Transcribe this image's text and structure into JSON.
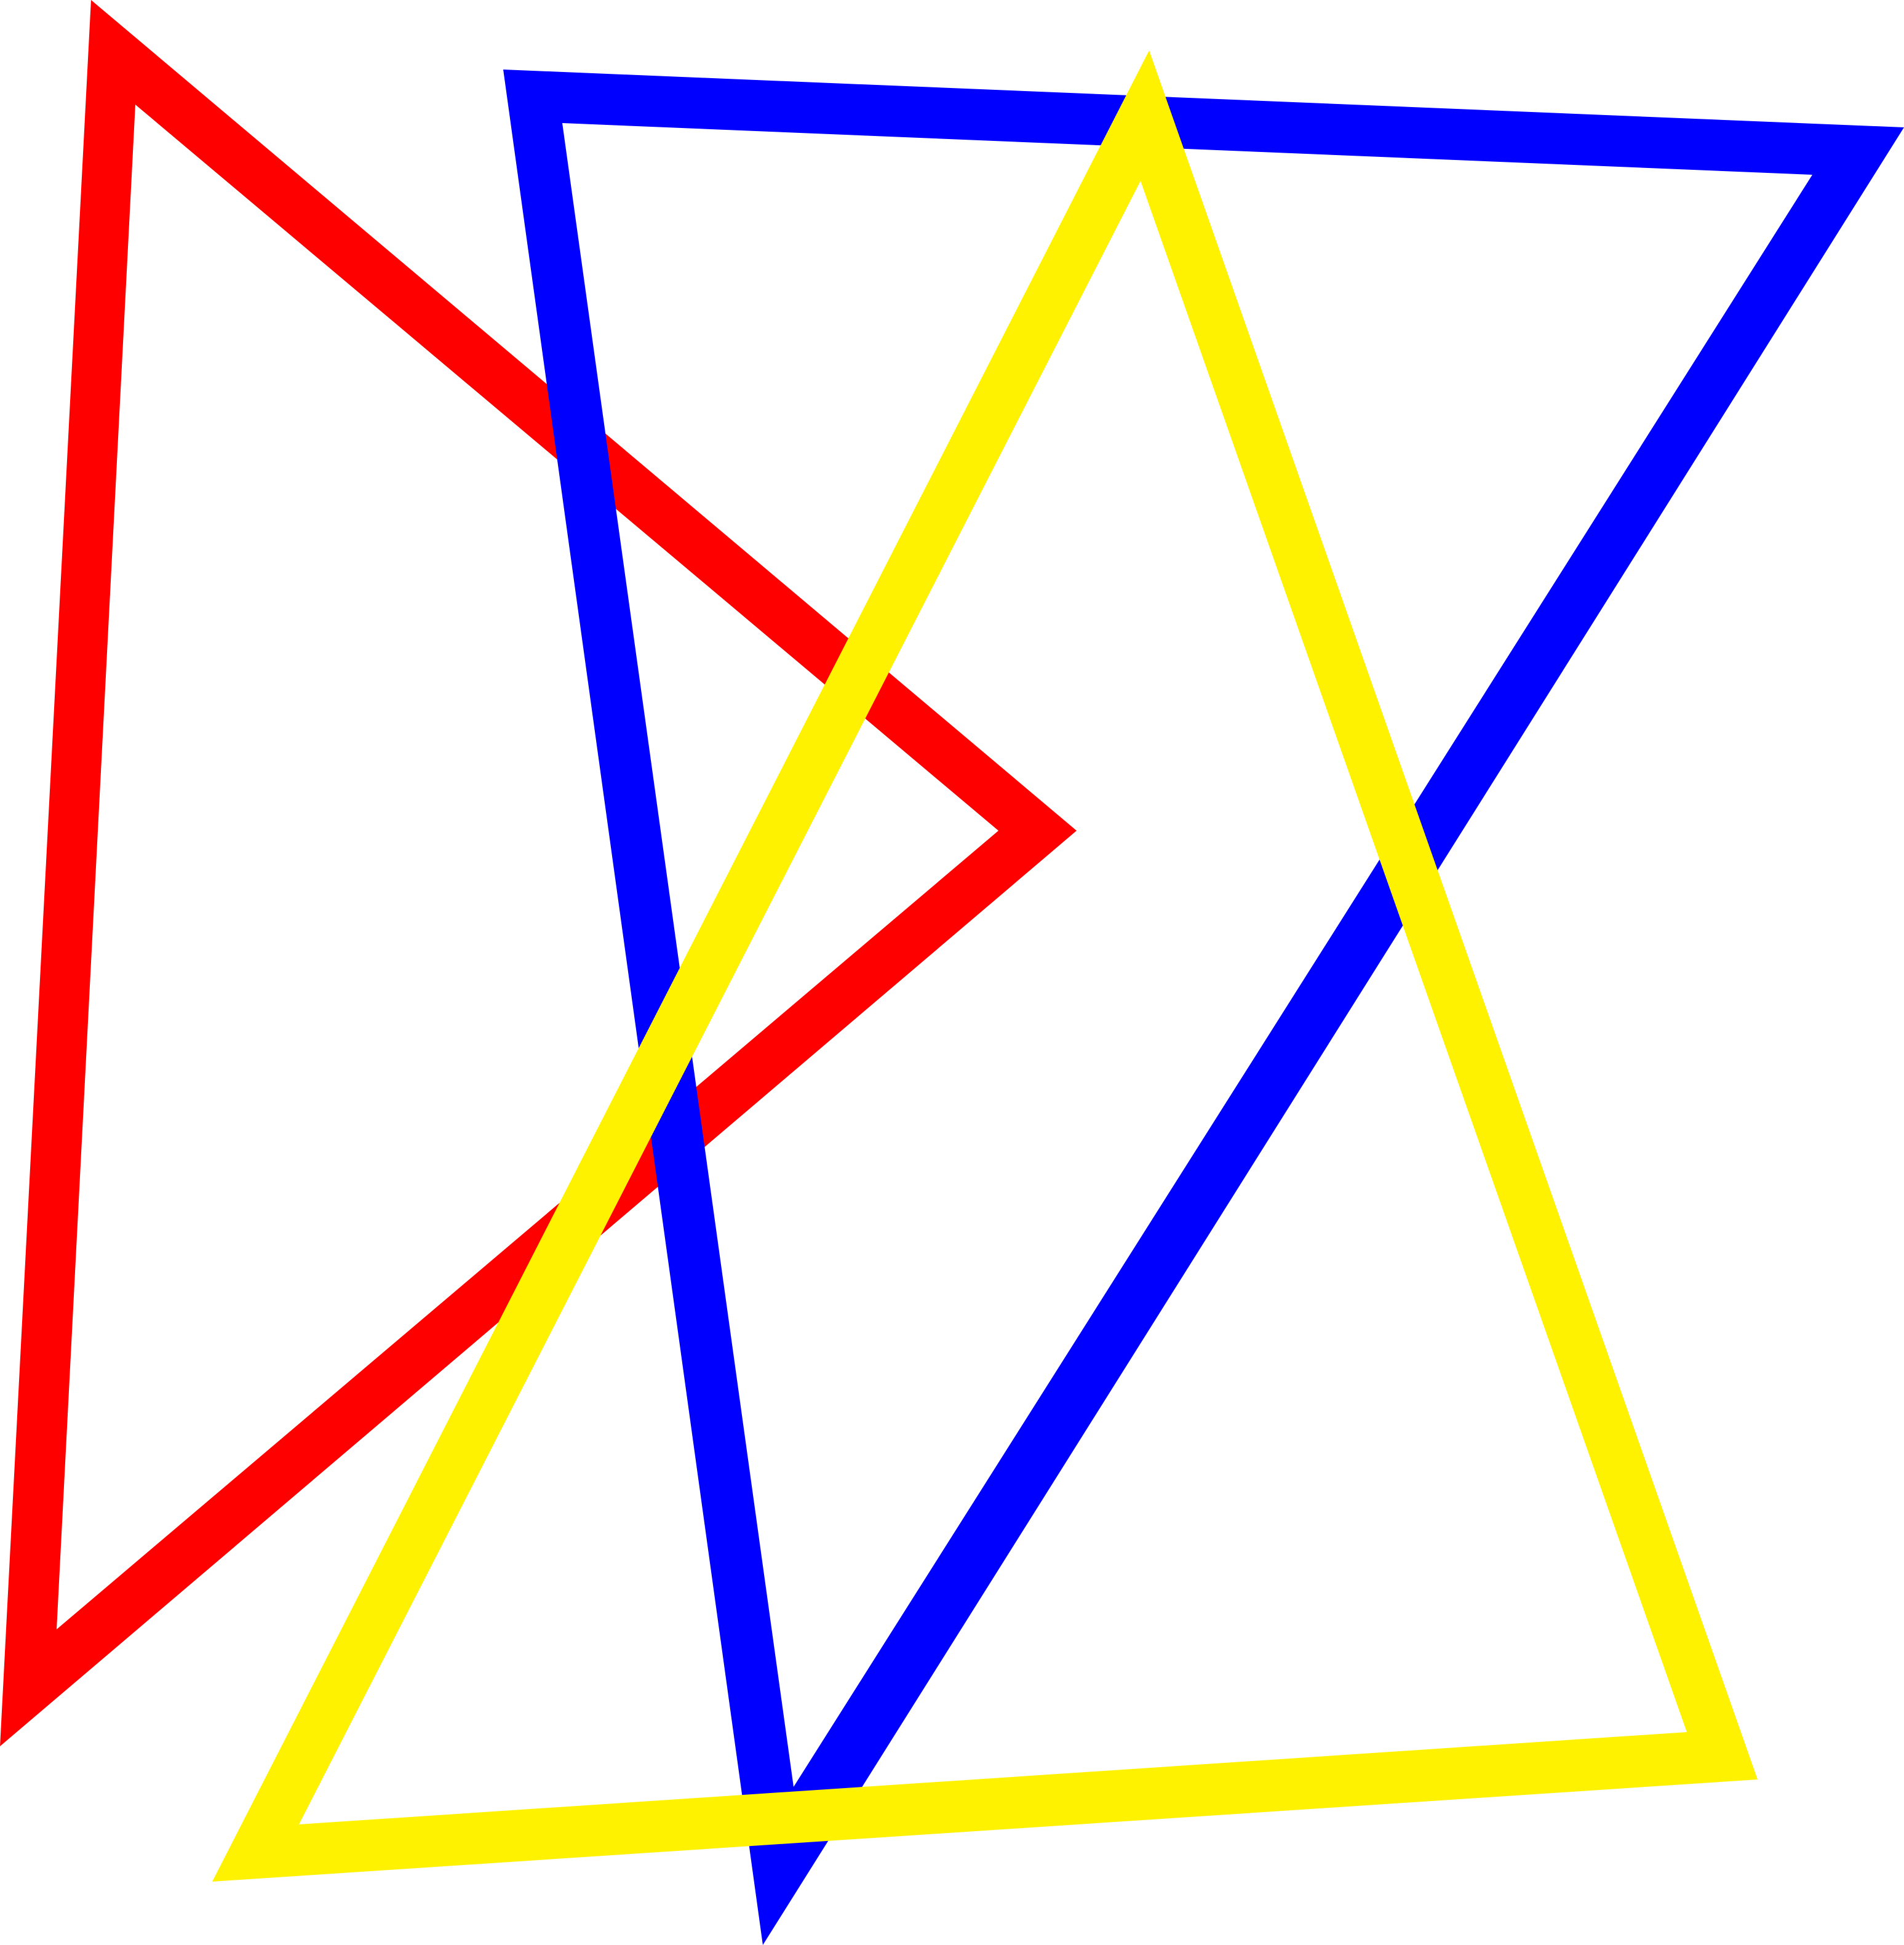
{
  "figure": {
    "background": "#ffffff",
    "shapes": [
      {
        "name": "red-triangle",
        "kind": "triangle-outline",
        "color": "#ff0000"
      },
      {
        "name": "blue-triangle",
        "kind": "triangle-outline",
        "color": "#0000ff"
      },
      {
        "name": "yellow-triangle",
        "kind": "triangle-outline",
        "color": "#fff200"
      }
    ]
  }
}
